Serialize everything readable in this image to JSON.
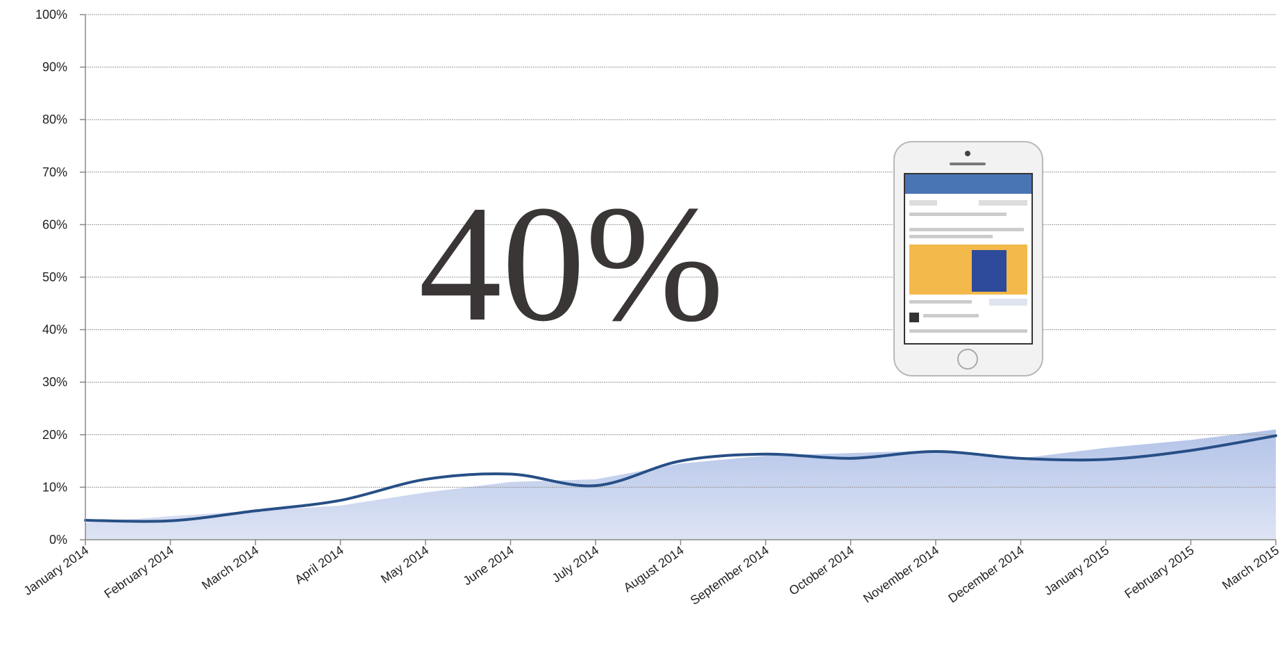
{
  "chart_data": {
    "type": "line",
    "annotation": "40%",
    "categories": [
      "January 2014",
      "February 2014",
      "March 2014",
      "April 2014",
      "May 2014",
      "June 2014",
      "July 2014",
      "August 2014",
      "September 2014",
      "October 2014",
      "November 2014",
      "December 2014",
      "January 2015",
      "February 2015",
      "March 2015"
    ],
    "series": [
      {
        "kind": "area",
        "color": "#c3d0ec",
        "values": [
          3.2,
          4.5,
          5.5,
          6.5,
          9,
          11,
          11.5,
          14.5,
          16,
          16.5,
          17,
          15.5,
          17.5,
          19,
          21
        ]
      },
      {
        "kind": "line",
        "color": "#274f86",
        "values": [
          3.7,
          3.6,
          5.5,
          7.5,
          11.5,
          12.5,
          10.3,
          15,
          16.3,
          15.5,
          16.8,
          15.5,
          15.3,
          17,
          19.8
        ]
      }
    ],
    "ylim": [
      0,
      100
    ],
    "yticks": [
      {
        "value": 0,
        "label": "0%"
      },
      {
        "value": 10,
        "label": "10%"
      },
      {
        "value": 20,
        "label": "20%"
      },
      {
        "value": 30,
        "label": "30%"
      },
      {
        "value": 40,
        "label": "40%"
      },
      {
        "value": 50,
        "label": "50%"
      },
      {
        "value": 60,
        "label": "60%"
      },
      {
        "value": 70,
        "label": "70%"
      },
      {
        "value": 80,
        "label": "80%"
      },
      {
        "value": 90,
        "label": "90%"
      },
      {
        "value": 100,
        "label": "100%"
      }
    ],
    "grid": true
  }
}
